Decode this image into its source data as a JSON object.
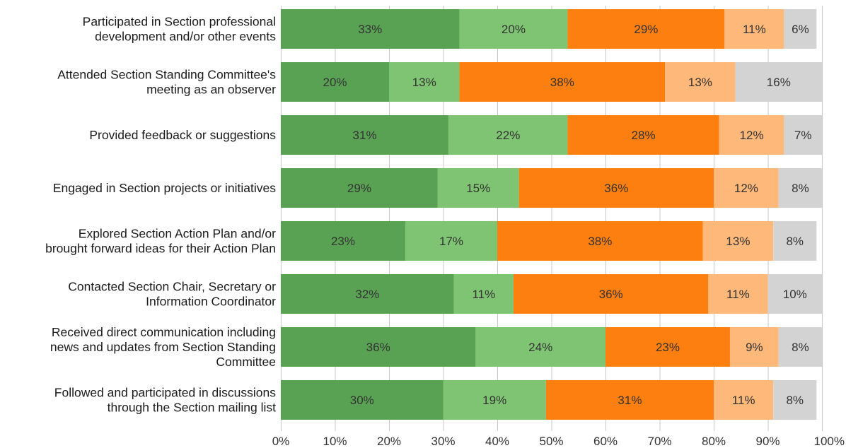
{
  "chart_data": {
    "type": "bar",
    "orientation": "horizontal",
    "stacked": true,
    "percent": true,
    "grid": true,
    "categories": [
      [
        "Participated in Section professional",
        "development and/or other events"
      ],
      [
        "Attended Section Standing Committee's",
        "meeting as an observer"
      ],
      [
        "Provided feedback or suggestions"
      ],
      [
        "Engaged in Section projects or initiatives"
      ],
      [
        "Explored Section Action Plan and/or",
        "brought forward ideas for their Action Plan"
      ],
      [
        "Contacted Section Chair, Secretary or",
        "Information Coordinator"
      ],
      [
        "Received direct communication including",
        "news and updates from Section Standing",
        "Committee"
      ],
      [
        "Followed and participated in discussions",
        "through the Section mailing list"
      ]
    ],
    "series": [
      {
        "color": "#5aa253",
        "values": [
          33,
          20,
          31,
          29,
          23,
          32,
          36,
          30
        ]
      },
      {
        "color": "#7fc472",
        "values": [
          20,
          13,
          22,
          15,
          17,
          11,
          24,
          19
        ]
      },
      {
        "color": "#fd7f0f",
        "values": [
          29,
          38,
          28,
          36,
          38,
          36,
          23,
          31
        ]
      },
      {
        "color": "#fdb87a",
        "values": [
          11,
          13,
          12,
          12,
          13,
          11,
          9,
          11
        ]
      },
      {
        "color": "#d3d3d3",
        "values": [
          6,
          16,
          7,
          8,
          8,
          10,
          8,
          8
        ]
      }
    ],
    "xlim": [
      0,
      100
    ],
    "xticks": [
      "0%",
      "10%",
      "20%",
      "30%",
      "40%",
      "50%",
      "60%",
      "70%",
      "80%",
      "90%",
      "100%"
    ]
  }
}
